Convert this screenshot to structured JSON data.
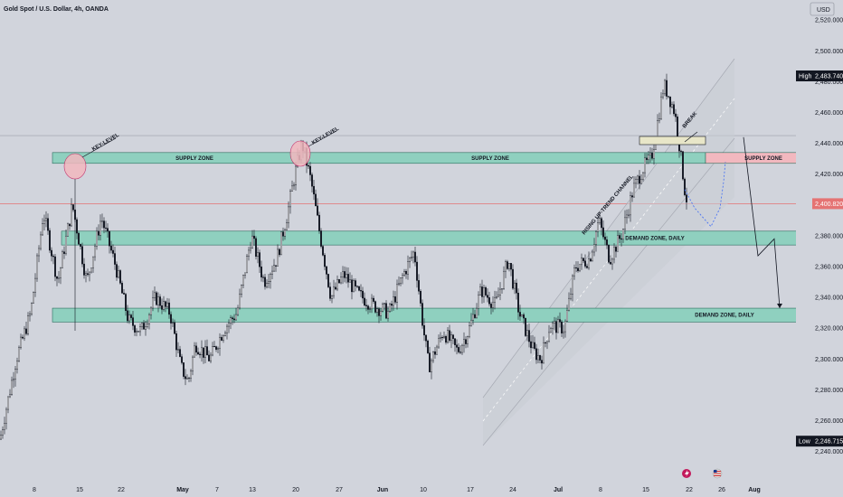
{
  "header": {
    "title": "Gold Spot / U.S. Dollar, 4h, OANDA",
    "currency": "USD"
  },
  "colors": {
    "background": "#d1d4dc",
    "candle": "#131722",
    "demand_zone": "#8fd0bf",
    "supply_zone": "#8fd0bf",
    "supply_zone_red": "#f2b8bf",
    "current_price_line": "#e57373",
    "channel": "#a6a9b3",
    "projection": "#3d6bf5"
  },
  "chart_data": {
    "type": "candlestick",
    "symbol": "Gold Spot / U.S. Dollar",
    "timeframe": "4h",
    "exchange": "OANDA",
    "y_ticks": [
      2240,
      2260,
      2280,
      2300,
      2320,
      2340,
      2360,
      2380,
      2400,
      2420,
      2440,
      2460,
      2480,
      2500,
      2520
    ],
    "y_tick_labels": [
      "2,240.000",
      "2,260.000",
      "2,280.000",
      "2,300.000",
      "2,320.000",
      "2,340.000",
      "2,360.000",
      "2,380.000",
      "2,400.000",
      "2,420.000",
      "2,440.000",
      "2,460.000",
      "2,480.000",
      "2,500.000",
      "2,520.000"
    ],
    "ylim": [
      2231,
      2533
    ],
    "x_ticks": [
      "8",
      "15",
      "22",
      "May",
      "7",
      "13",
      "20",
      "27",
      "Jun",
      "10",
      "17",
      "24",
      "Jul",
      "8",
      "15",
      "22",
      "26",
      "Aug"
    ],
    "x_bold_ticks": [
      "May",
      "Jun",
      "Jul",
      "Aug"
    ],
    "high": {
      "label": "High",
      "value": "2,483.740"
    },
    "low": {
      "label": "Low",
      "value": "2,246.715"
    },
    "current_price": {
      "value": "2,400.820",
      "number": 2400.82
    },
    "path": [
      [
        0,
        2248
      ],
      [
        18,
        2300
      ],
      [
        34,
        2330
      ],
      [
        48,
        2395
      ],
      [
        64,
        2350
      ],
      [
        80,
        2400
      ],
      [
        96,
        2350
      ],
      [
        112,
        2392
      ],
      [
        128,
        2360
      ],
      [
        142,
        2325
      ],
      [
        156,
        2318
      ],
      [
        172,
        2340
      ],
      [
        188,
        2330
      ],
      [
        200,
        2295
      ],
      [
        208,
        2285
      ],
      [
        216,
        2310
      ],
      [
        232,
        2300
      ],
      [
        248,
        2320
      ],
      [
        262,
        2330
      ],
      [
        278,
        2380
      ],
      [
        292,
        2350
      ],
      [
        306,
        2365
      ],
      [
        318,
        2395
      ],
      [
        326,
        2420
      ],
      [
        334,
        2440
      ],
      [
        344,
        2415
      ],
      [
        354,
        2380
      ],
      [
        366,
        2340
      ],
      [
        380,
        2355
      ],
      [
        396,
        2342
      ],
      [
        412,
        2335
      ],
      [
        430,
        2330
      ],
      [
        446,
        2355
      ],
      [
        458,
        2370
      ],
      [
        468,
        2320
      ],
      [
        474,
        2295
      ],
      [
        490,
        2318
      ],
      [
        506,
        2305
      ],
      [
        518,
        2318
      ],
      [
        532,
        2345
      ],
      [
        548,
        2335
      ],
      [
        562,
        2365
      ],
      [
        574,
        2330
      ],
      [
        590,
        2305
      ],
      [
        598,
        2300
      ],
      [
        608,
        2322
      ],
      [
        624,
        2320
      ],
      [
        636,
        2360
      ],
      [
        652,
        2365
      ],
      [
        662,
        2390
      ],
      [
        674,
        2365
      ],
      [
        688,
        2382
      ],
      [
        700,
        2410
      ],
      [
        712,
        2425
      ],
      [
        720,
        2430
      ],
      [
        726,
        2450
      ],
      [
        734,
        2478
      ],
      [
        740,
        2470
      ],
      [
        746,
        2460
      ],
      [
        752,
        2435
      ],
      [
        757,
        2410
      ],
      [
        760,
        2401
      ]
    ],
    "zones": [
      {
        "type": "supply",
        "label": "SUPPLY ZONE",
        "y1": 2427,
        "y2": 2434
      },
      {
        "type": "supply",
        "label": "SUPPLY ZONE",
        "y1": 2427,
        "y2": 2434
      },
      {
        "type": "supply-red",
        "label": "SUPPLY ZONE",
        "y1": 2427,
        "y2": 2434
      },
      {
        "type": "demand",
        "label": "DEMAND ZONE, DAILY",
        "y1": 2374,
        "y2": 2383
      },
      {
        "type": "demand",
        "label": "DEMAND ZONE, DAILY",
        "y1": 2324,
        "y2": 2333
      }
    ],
    "horizontal_lines": [
      {
        "value": 2445,
        "style": "gray"
      },
      {
        "value": 2400.82,
        "style": "current"
      }
    ],
    "annotations": {
      "key_level_1": "KEY-LEVEL",
      "key_level_2": "KEY-LEVEL",
      "break": "BREAK",
      "channel": "RISING UP-TREND CHANNEL"
    },
    "projection_path": [
      [
        757,
        2410
      ],
      [
        768,
        2398
      ],
      [
        780,
        2390
      ],
      [
        786,
        2386
      ],
      [
        796,
        2398
      ],
      [
        800,
        2415
      ],
      [
        802,
        2428
      ]
    ],
    "arrow_path": [
      [
        822,
        2444
      ],
      [
        838,
        2367
      ],
      [
        856,
        2378
      ],
      [
        862,
        2333
      ]
    ]
  }
}
